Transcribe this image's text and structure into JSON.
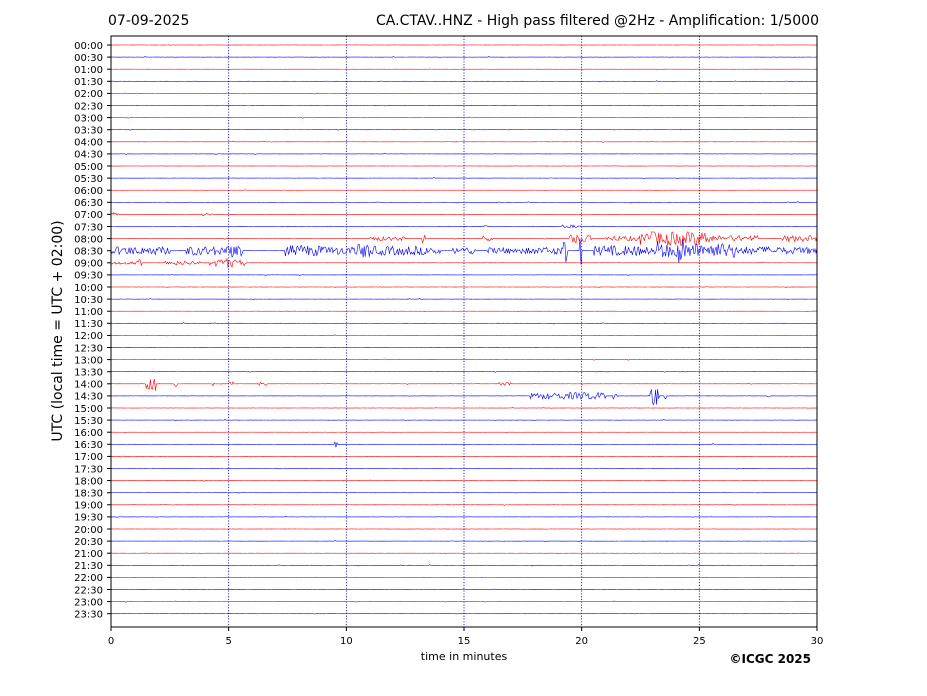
{
  "header": {
    "date": "07-09-2025",
    "title": "CA.CTAV..HNZ - High pass filtered @2Hz - Amplification: 1/5000"
  },
  "copyright": "©ICGC 2025",
  "colors": {
    "even_trace": "#ff0000",
    "odd_trace": "#0000ff",
    "grid": "#0000aa",
    "axes": "#000000"
  },
  "chart_data": {
    "type": "line",
    "title": "CA.CTAV..HNZ - High pass filtered @2Hz - Amplification: 1/5000",
    "xlabel": "time in minutes",
    "ylabel": "UTC (local time = UTC + 02:00)",
    "xlim": [
      0,
      30
    ],
    "xticks": [
      "0",
      "5",
      "10",
      "15",
      "20",
      "25",
      "30"
    ],
    "vertical_gridlines_at": [
      5,
      10,
      15,
      20,
      25
    ],
    "rows": [
      "00:00",
      "00:30",
      "01:00",
      "01:30",
      "02:00",
      "02:30",
      "03:00",
      "03:30",
      "04:00",
      "04:30",
      "05:00",
      "05:30",
      "06:00",
      "06:30",
      "07:00",
      "07:30",
      "08:00",
      "08:30",
      "09:00",
      "09:30",
      "10:00",
      "10:30",
      "11:00",
      "11:30",
      "12:00",
      "12:30",
      "13:00",
      "13:30",
      "14:00",
      "14:30",
      "15:00",
      "15:30",
      "16:00",
      "16:30",
      "17:00",
      "17:30",
      "18:00",
      "18:30",
      "19:00",
      "19:30",
      "20:00",
      "20:30",
      "21:00",
      "21:30",
      "22:00",
      "22:30",
      "23:00",
      "23:30"
    ],
    "trace_colors": [
      "#ff0000",
      "#0000ff"
    ],
    "activity": [
      {
        "row": "07:00",
        "bursts": [
          [
            0,
            0.3,
            0.35
          ],
          [
            3.8,
            4.3,
            0.3
          ]
        ]
      },
      {
        "row": "07:30",
        "bursts": [
          [
            15.8,
            16.1,
            0.25
          ],
          [
            19.2,
            20.0,
            0.3
          ]
        ]
      },
      {
        "row": "08:00",
        "bursts": [
          [
            11,
            12.5,
            0.4
          ],
          [
            13.2,
            13.4,
            1.2
          ],
          [
            15.8,
            16.2,
            0.6
          ],
          [
            19.5,
            20.4,
            0.9
          ],
          [
            21,
            22.5,
            0.5
          ],
          [
            22.5,
            25.5,
            1.4
          ],
          [
            25.5,
            27.5,
            0.6
          ],
          [
            28.5,
            30,
            0.6
          ]
        ]
      },
      {
        "row": "08:30",
        "bursts": [
          [
            0,
            2.5,
            0.8
          ],
          [
            3.2,
            5,
            0.9
          ],
          [
            5,
            5.6,
            1.3
          ],
          [
            7.4,
            9,
            1.1
          ],
          [
            9,
            10.5,
            0.8
          ],
          [
            10.5,
            11,
            1.5
          ],
          [
            11,
            13,
            0.9
          ],
          [
            13,
            14,
            0.8
          ],
          [
            14.5,
            15.5,
            0.7
          ],
          [
            16,
            18,
            0.6
          ],
          [
            18,
            19.1,
            0.7
          ],
          [
            19.1,
            19.4,
            2.5
          ],
          [
            19.9,
            20,
            3.0
          ],
          [
            20.5,
            22.5,
            1.0
          ],
          [
            22.5,
            23.2,
            0.8
          ],
          [
            23.2,
            23.5,
            2.0
          ],
          [
            23.5,
            24.1,
            1.3
          ],
          [
            24.1,
            24.3,
            2.8
          ],
          [
            24.3,
            26.5,
            1.5
          ],
          [
            26.5,
            28.5,
            0.8
          ],
          [
            28.5,
            30,
            0.7
          ]
        ]
      },
      {
        "row": "09:00",
        "bursts": [
          [
            0,
            1.2,
            0.3
          ],
          [
            1.2,
            1.3,
            0.8
          ],
          [
            2.3,
            3.8,
            0.4
          ],
          [
            4.2,
            4.7,
            0.7
          ],
          [
            4.7,
            5.2,
            1.0
          ],
          [
            5.2,
            5.8,
            0.6
          ]
        ]
      },
      {
        "row": "14:00",
        "bursts": [
          [
            1.5,
            1.9,
            1.4
          ],
          [
            2.7,
            2.8,
            0.6
          ],
          [
            4.3,
            4.4,
            0.8
          ],
          [
            5,
            5.2,
            0.4
          ],
          [
            6.3,
            6.6,
            0.4
          ],
          [
            16.5,
            17,
            0.3
          ]
        ]
      },
      {
        "row": "14:30",
        "bursts": [
          [
            17.8,
            19,
            0.6
          ],
          [
            19,
            21,
            0.7
          ],
          [
            21.3,
            21.5,
            1.2
          ],
          [
            22.9,
            23.3,
            1.9
          ],
          [
            23.5,
            23.6,
            0.6
          ],
          [
            27.9,
            28,
            0.5
          ]
        ]
      },
      {
        "row": "16:30",
        "bursts": [
          [
            9.5,
            9.7,
            0.6
          ]
        ]
      }
    ]
  }
}
